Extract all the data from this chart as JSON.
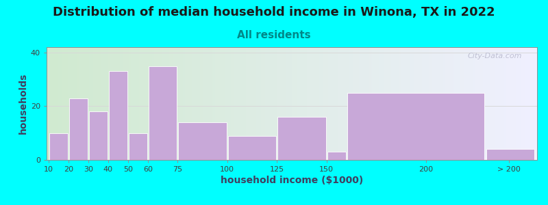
{
  "title": "Distribution of median household income in Winona, TX in 2022",
  "subtitle": "All residents",
  "xlabel": "household income ($1000)",
  "ylabel": "households",
  "background_outer": "#00FFFF",
  "background_inner_left": "#d0ead0",
  "background_inner_right": "#f0f0ff",
  "bar_color": "#c8a8d8",
  "bar_edgecolor": "#ffffff",
  "categories": [
    "10",
    "20",
    "30",
    "40",
    "50",
    "60",
    "75",
    "100",
    "125",
    "150",
    "200",
    "> 200"
  ],
  "values": [
    10,
    23,
    18,
    33,
    10,
    35,
    14,
    9,
    16,
    3,
    25,
    4
  ],
  "bar_lefts": [
    10,
    20,
    30,
    40,
    50,
    60,
    75,
    100,
    125,
    150,
    160,
    230
  ],
  "bar_rights": [
    20,
    30,
    40,
    50,
    60,
    75,
    100,
    125,
    150,
    160,
    230,
    255
  ],
  "xtick_positions": [
    10,
    20,
    30,
    40,
    50,
    60,
    75,
    100,
    125,
    150,
    200,
    242
  ],
  "xlim": [
    9,
    256
  ],
  "ylim": [
    0,
    42
  ],
  "yticks": [
    0,
    20,
    40
  ],
  "title_fontsize": 13,
  "subtitle_fontsize": 11,
  "axis_label_fontsize": 10,
  "tick_fontsize": 8,
  "watermark_text": "City-Data.com",
  "watermark_color": "#b8b8cc",
  "grid_color": "#d8d8d8",
  "spine_color": "#909090",
  "subtitle_color": "#008888",
  "title_color": "#1a1a1a",
  "label_color": "#404060"
}
